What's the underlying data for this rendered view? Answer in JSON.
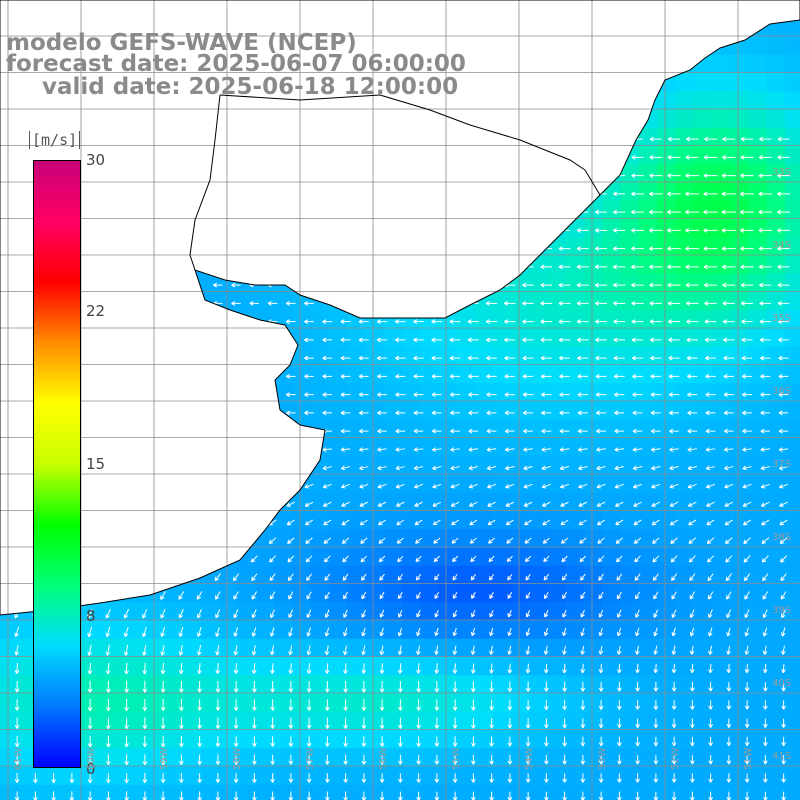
{
  "header": {
    "line1": "modelo GEFS-WAVE (NCEP)",
    "line2": "forecast date: 2025-06-07 06:00:00",
    "line3": "valid date: 2025-06-18 12:00:00"
  },
  "colorbar": {
    "unit": "[m/s]",
    "min": 0,
    "max": 30,
    "ticks": [
      "30",
      "22",
      "15",
      "8",
      "0"
    ],
    "tick_values": [
      30,
      22,
      15,
      8,
      0
    ],
    "colors": [
      "#0000ff",
      "#0078ff",
      "#00dcff",
      "#00ff78",
      "#00ff00",
      "#c8ff00",
      "#ffff00",
      "#ff8c00",
      "#ff0000",
      "#ff0064",
      "#c80078"
    ]
  },
  "map": {
    "lat_labels": [
      "33S",
      "34S",
      "35S",
      "36S",
      "37S",
      "38S",
      "39S",
      "40S",
      "41S"
    ],
    "lon_labels": [
      "61W",
      "60W",
      "59W",
      "58W",
      "57W",
      "56W",
      "55W",
      "54W",
      "53W",
      "52W",
      "51W"
    ],
    "variable": "wind speed and direction",
    "land_color": "#ffffff",
    "ocean_palette": "wind speed",
    "dominant_wind_direction": "from the east"
  }
}
